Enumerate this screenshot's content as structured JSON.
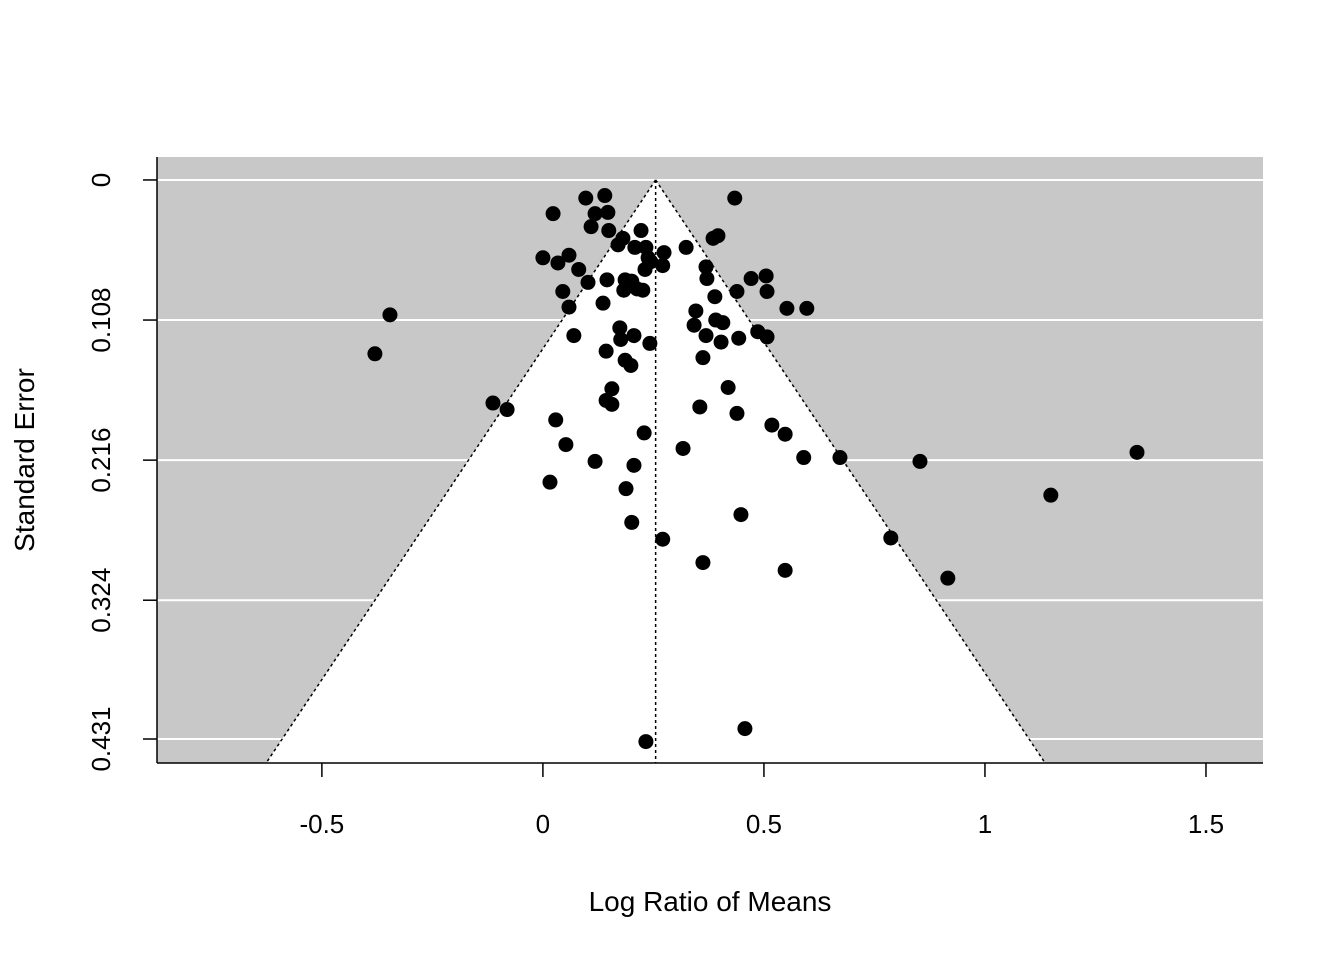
{
  "chart_data": {
    "type": "scatter",
    "subtype": "funnel",
    "title": "",
    "xlabel": "Log Ratio of Means",
    "ylabel": "Standard Error",
    "xlim": [
      -0.873,
      1.629
    ],
    "ylim": [
      0.4495,
      -0.0177
    ],
    "y_reversed": true,
    "x_ticks": [
      {
        "value": -0.5,
        "label": "-0.5"
      },
      {
        "value": 0,
        "label": "0"
      },
      {
        "value": 0.5,
        "label": "0.5"
      },
      {
        "value": 1,
        "label": "1"
      },
      {
        "value": 1.5,
        "label": "1.5"
      }
    ],
    "y_ticks": [
      {
        "value": 0,
        "label": "0"
      },
      {
        "value": 0.108,
        "label": "0.108"
      },
      {
        "value": 0.216,
        "label": "0.216"
      },
      {
        "value": 0.324,
        "label": "0.324"
      },
      {
        "value": 0.431,
        "label": "0.431"
      }
    ],
    "grid": "horizontal",
    "funnel_center": 0.255,
    "funnel_z": 1.96,
    "colors": {
      "background": "#c8c8c8",
      "funnel": "#ffffff",
      "points": "#000000",
      "grid": "#ffffff"
    },
    "points": [
      [
        0.097,
        0.014
      ],
      [
        0.14,
        0.012
      ],
      [
        0.434,
        0.014
      ],
      [
        0.023,
        0.026
      ],
      [
        0.118,
        0.026
      ],
      [
        0.147,
        0.025
      ],
      [
        0.149,
        0.039
      ],
      [
        0.109,
        0.036
      ],
      [
        0.222,
        0.039
      ],
      [
        0.181,
        0.045
      ],
      [
        0.17,
        0.05
      ],
      [
        0.208,
        0.052
      ],
      [
        0.233,
        0.052
      ],
      [
        0.324,
        0.052
      ],
      [
        0.385,
        0.045
      ],
      [
        0.396,
        0.043
      ],
      [
        0.274,
        0.056
      ],
      [
        0.0,
        0.06
      ],
      [
        0.034,
        0.064
      ],
      [
        0.059,
        0.058
      ],
      [
        0.081,
        0.069
      ],
      [
        0.102,
        0.079
      ],
      [
        0.145,
        0.077
      ],
      [
        0.186,
        0.077
      ],
      [
        0.201,
        0.078
      ],
      [
        0.231,
        0.069
      ],
      [
        0.244,
        0.063
      ],
      [
        0.238,
        0.06
      ],
      [
        0.271,
        0.066
      ],
      [
        0.369,
        0.067
      ],
      [
        0.371,
        0.076
      ],
      [
        0.045,
        0.086
      ],
      [
        0.059,
        0.098
      ],
      [
        0.136,
        0.095
      ],
      [
        0.183,
        0.085
      ],
      [
        0.213,
        0.084
      ],
      [
        0.226,
        0.085
      ],
      [
        0.439,
        0.086
      ],
      [
        0.471,
        0.076
      ],
      [
        0.505,
        0.074
      ],
      [
        0.507,
        0.086
      ],
      [
        0.389,
        0.09
      ],
      [
        0.346,
        0.101
      ],
      [
        0.552,
        0.099
      ],
      [
        0.597,
        0.099
      ],
      [
        0.342,
        0.112
      ],
      [
        0.391,
        0.108
      ],
      [
        0.407,
        0.11
      ],
      [
        0.369,
        0.12
      ],
      [
        0.403,
        0.125
      ],
      [
        0.443,
        0.122
      ],
      [
        0.486,
        0.117
      ],
      [
        0.507,
        0.121
      ],
      [
        0.174,
        0.114
      ],
      [
        0.176,
        0.123
      ],
      [
        0.206,
        0.12
      ],
      [
        0.242,
        0.126
      ],
      [
        0.07,
        0.12
      ],
      [
        0.143,
        0.132
      ],
      [
        0.186,
        0.139
      ],
      [
        0.199,
        0.143
      ],
      [
        0.362,
        0.137
      ],
      [
        -0.38,
        0.134
      ],
      [
        -0.346,
        0.104
      ],
      [
        0.156,
        0.161
      ],
      [
        0.143,
        0.17
      ],
      [
        0.156,
        0.173
      ],
      [
        -0.113,
        0.172
      ],
      [
        -0.081,
        0.177
      ],
      [
        0.419,
        0.16
      ],
      [
        0.355,
        0.175
      ],
      [
        0.439,
        0.18
      ],
      [
        0.029,
        0.185
      ],
      [
        0.229,
        0.195
      ],
      [
        0.052,
        0.204
      ],
      [
        0.118,
        0.217
      ],
      [
        0.206,
        0.22
      ],
      [
        0.317,
        0.207
      ],
      [
        0.518,
        0.189
      ],
      [
        0.548,
        0.196
      ],
      [
        0.59,
        0.214
      ],
      [
        0.672,
        0.214
      ],
      [
        0.853,
        0.217
      ],
      [
        1.344,
        0.21
      ],
      [
        1.149,
        0.243
      ],
      [
        0.016,
        0.233
      ],
      [
        0.188,
        0.238
      ],
      [
        0.448,
        0.258
      ],
      [
        0.201,
        0.264
      ],
      [
        0.271,
        0.277
      ],
      [
        0.787,
        0.276
      ],
      [
        0.362,
        0.295
      ],
      [
        0.548,
        0.301
      ],
      [
        0.916,
        0.307
      ],
      [
        0.457,
        0.423
      ],
      [
        0.233,
        0.433
      ]
    ]
  }
}
